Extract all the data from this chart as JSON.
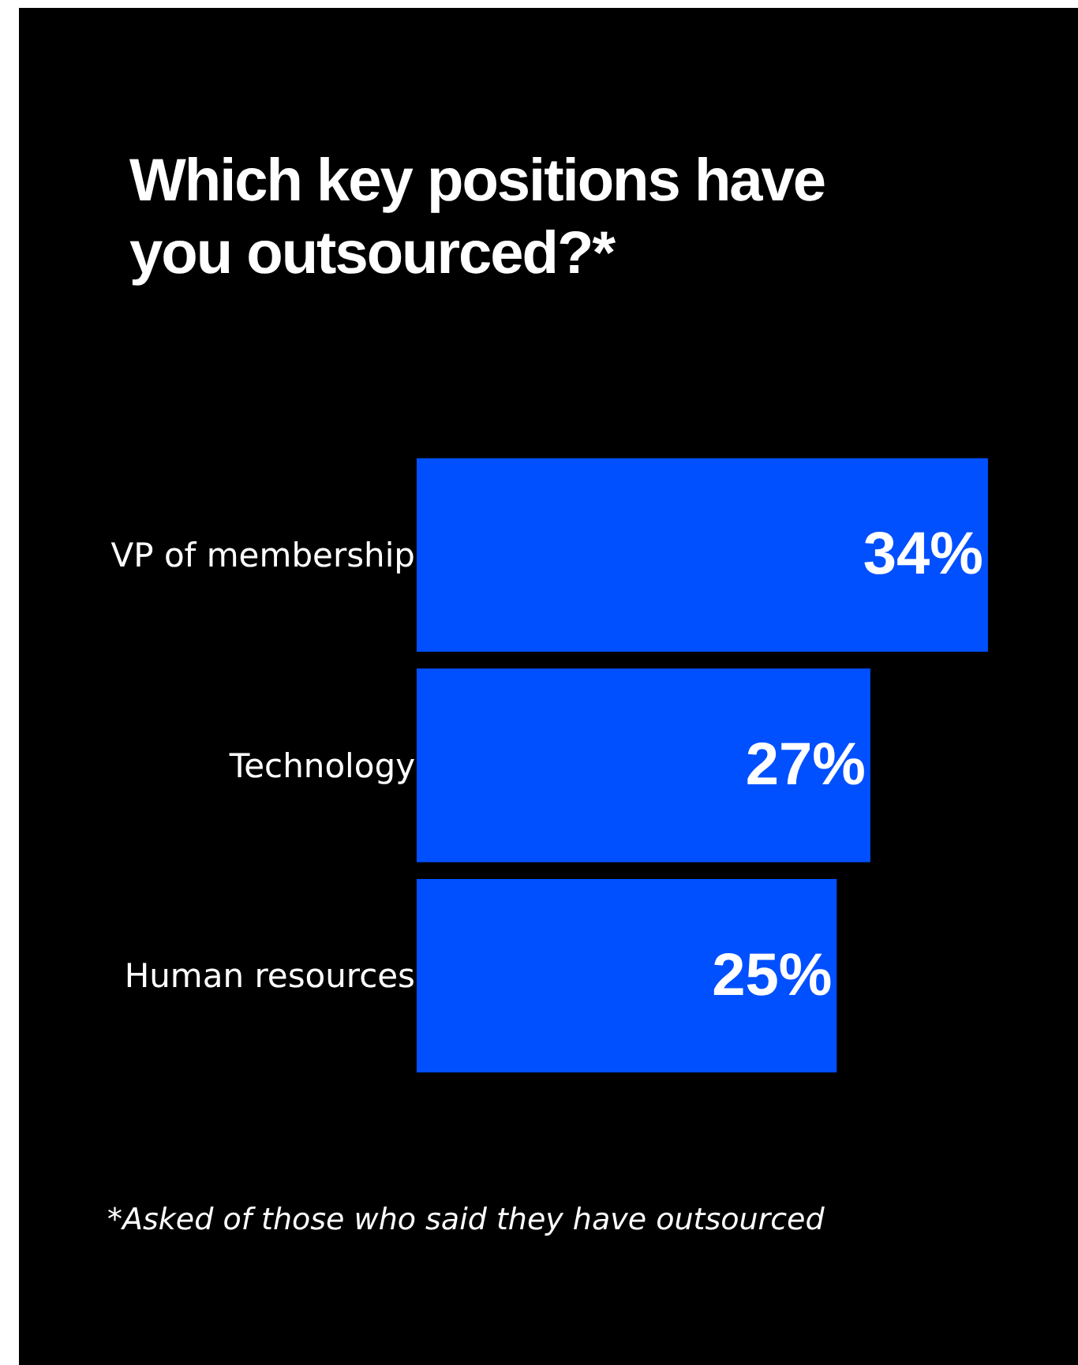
{
  "chart_data": {
    "type": "bar",
    "orientation": "horizontal",
    "title": "Which key positions have you outsourced?*",
    "categories": [
      "VP of membership",
      "Technology",
      "Human resources"
    ],
    "values": [
      34,
      27,
      25
    ],
    "color": "#0050ff",
    "value_labels": [
      "34%",
      "27%",
      "25%"
    ],
    "annotations": [
      "*Asked of those who said they have outsourced"
    ]
  }
}
